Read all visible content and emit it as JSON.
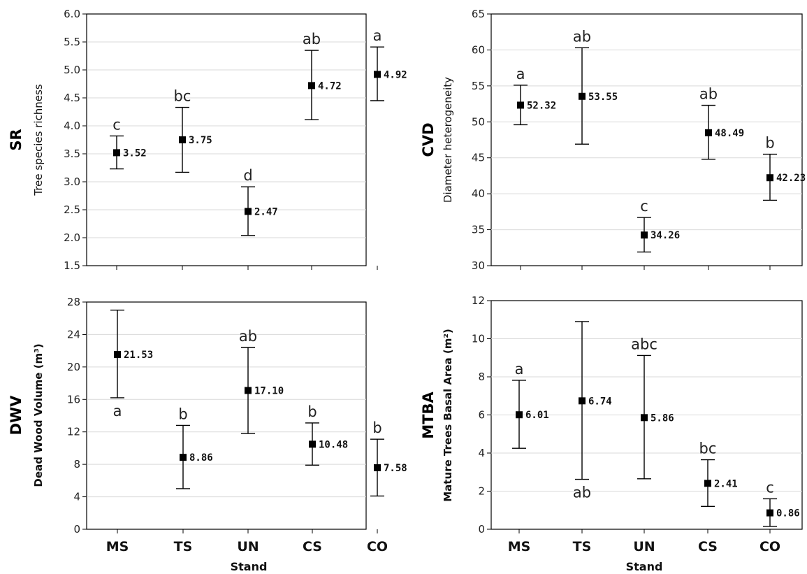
{
  "chart_data": [
    {
      "type": "scatter",
      "title": "SR",
      "ylabel": "Tree species richness",
      "xlabel": "",
      "categories": [
        "MS",
        "TS",
        "UN",
        "CS",
        "CO"
      ],
      "ylim": [
        1.5,
        6.0
      ],
      "yticks": [
        "1.5",
        "2.0",
        "2.5",
        "3.0",
        "3.5",
        "4.0",
        "4.5",
        "5.0",
        "5.5",
        "6.0"
      ],
      "grid": true,
      "values": [
        3.52,
        3.75,
        2.47,
        4.72,
        4.92
      ],
      "value_labels": [
        "3.52",
        "3.75",
        "2.47",
        "4.72",
        "4.92"
      ],
      "error_low": [
        3.23,
        3.17,
        2.04,
        4.11,
        4.45
      ],
      "error_high": [
        3.82,
        4.33,
        2.91,
        5.35,
        5.41
      ],
      "letters": [
        "c",
        "bc",
        "d",
        "ab",
        "a"
      ],
      "letter_position": [
        "above",
        "above",
        "above",
        "above",
        "above"
      ]
    },
    {
      "type": "scatter",
      "title": "CVD",
      "ylabel": "Diameter heterogeneity",
      "xlabel": "",
      "categories": [
        "MS",
        "TS",
        "UN",
        "CS",
        "CO"
      ],
      "ylim": [
        30,
        65
      ],
      "yticks": [
        "30",
        "35",
        "40",
        "45",
        "50",
        "55",
        "60",
        "65"
      ],
      "grid": true,
      "values": [
        52.32,
        53.55,
        34.26,
        48.49,
        42.23
      ],
      "value_labels": [
        "52.32",
        "53.55",
        "34.26",
        "48.49",
        "42.23"
      ],
      "error_low": [
        49.6,
        46.9,
        31.9,
        44.8,
        39.1
      ],
      "error_high": [
        55.1,
        60.3,
        36.7,
        52.3,
        45.5
      ],
      "letters": [
        "a",
        "ab",
        "c",
        "ab",
        "b"
      ],
      "letter_position": [
        "above",
        "above",
        "above",
        "above",
        "above"
      ]
    },
    {
      "type": "scatter",
      "title": "DWV",
      "ylabel": "Dead Wood Volume (m³)",
      "xlabel": "Stand",
      "categories": [
        "MS",
        "TS",
        "UN",
        "CS",
        "CO"
      ],
      "ylim": [
        0,
        28
      ],
      "yticks": [
        "0",
        "4",
        "8",
        "12",
        "16",
        "20",
        "24",
        "28"
      ],
      "grid": true,
      "values": [
        21.53,
        8.86,
        17.1,
        10.48,
        7.58
      ],
      "value_labels": [
        "21.53",
        "8.86",
        "17.10",
        "10.48",
        "7.58"
      ],
      "error_low": [
        16.2,
        5.0,
        11.8,
        7.9,
        4.1
      ],
      "error_high": [
        27.0,
        12.8,
        22.4,
        13.1,
        11.1
      ],
      "letters": [
        "a",
        "b",
        "ab",
        "b",
        "b"
      ],
      "letter_position": [
        "below",
        "above",
        "above",
        "above",
        "above"
      ]
    },
    {
      "type": "scatter",
      "title": "MTBA",
      "ylabel": "Mature Trees Basal Area (m²)",
      "xlabel": "Stand",
      "categories": [
        "MS",
        "TS",
        "UN",
        "CS",
        "CO"
      ],
      "ylim": [
        0,
        12
      ],
      "yticks": [
        "0",
        "2",
        "4",
        "6",
        "8",
        "10",
        "12"
      ],
      "grid": true,
      "values": [
        6.01,
        6.74,
        5.86,
        2.41,
        0.86
      ],
      "value_labels": [
        "6.01",
        "6.74",
        "5.86",
        "2.41",
        "0.86"
      ],
      "error_low": [
        4.25,
        2.62,
        2.65,
        1.2,
        0.15
      ],
      "error_high": [
        7.82,
        10.9,
        9.12,
        3.65,
        1.6
      ],
      "letters": [
        "a",
        "ab",
        "abc",
        "bc",
        "c"
      ],
      "letter_position": [
        "above",
        "below",
        "above",
        "above",
        "above"
      ]
    }
  ]
}
